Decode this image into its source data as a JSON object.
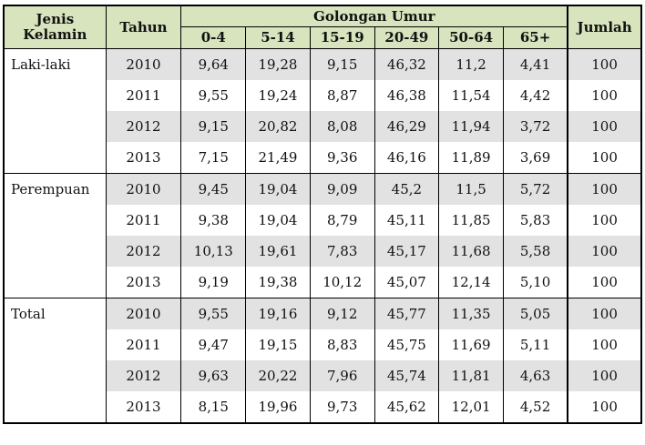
{
  "table": {
    "headers": {
      "sex": "Jenis Kelamin",
      "year": "Tahun",
      "age_group": "Golongan Umur",
      "total": "Jumlah",
      "age_bands": [
        "0-4",
        "5-14",
        "15-19",
        "20-49",
        "50-64",
        "65+"
      ]
    },
    "groups": [
      {
        "label": "Laki-laki",
        "rows": [
          {
            "year": "2010",
            "values": [
              "9,64",
              "19,28",
              "9,15",
              "46,32",
              "11,2",
              "4,41"
            ],
            "total": "100"
          },
          {
            "year": "2011",
            "values": [
              "9,55",
              "19,24",
              "8,87",
              "46,38",
              "11,54",
              "4,42"
            ],
            "total": "100"
          },
          {
            "year": "2012",
            "values": [
              "9,15",
              "20,82",
              "8,08",
              "46,29",
              "11,94",
              "3,72"
            ],
            "total": "100"
          },
          {
            "year": "2013",
            "values": [
              "7,15",
              "21,49",
              "9,36",
              "46,16",
              "11,89",
              "3,69"
            ],
            "total": "100"
          }
        ]
      },
      {
        "label": "Perempuan",
        "rows": [
          {
            "year": "2010",
            "values": [
              "9,45",
              "19,04",
              "9,09",
              "45,2",
              "11,5",
              "5,72"
            ],
            "total": "100"
          },
          {
            "year": "2011",
            "values": [
              "9,38",
              "19,04",
              "8,79",
              "45,11",
              "11,85",
              "5,83"
            ],
            "total": "100"
          },
          {
            "year": "2012",
            "values": [
              "10,13",
              "19,61",
              "7,83",
              "45,17",
              "11,68",
              "5,58"
            ],
            "total": "100"
          },
          {
            "year": "2013",
            "values": [
              "9,19",
              "19,38",
              "10,12",
              "45,07",
              "12,14",
              "5,10"
            ],
            "total": "100"
          }
        ]
      },
      {
        "label": "Total",
        "rows": [
          {
            "year": "2010",
            "values": [
              "9,55",
              "19,16",
              "9,12",
              "45,77",
              "11,35",
              "5,05"
            ],
            "total": "100"
          },
          {
            "year": "2011",
            "values": [
              "9,47",
              "19,15",
              "8,83",
              "45,75",
              "11,69",
              "5,11"
            ],
            "total": "100"
          },
          {
            "year": "2012",
            "values": [
              "9,63",
              "20,22",
              "7,96",
              "45,74",
              "11,81",
              "4,63"
            ],
            "total": "100"
          },
          {
            "year": "2013",
            "values": [
              "8,15",
              "19,96",
              "9,73",
              "45,62",
              "12,01",
              "4,52"
            ],
            "total": "100"
          }
        ]
      }
    ],
    "colors": {
      "header_bg": "#d7e4bd",
      "shade_bg": "#e2e2e2"
    }
  }
}
